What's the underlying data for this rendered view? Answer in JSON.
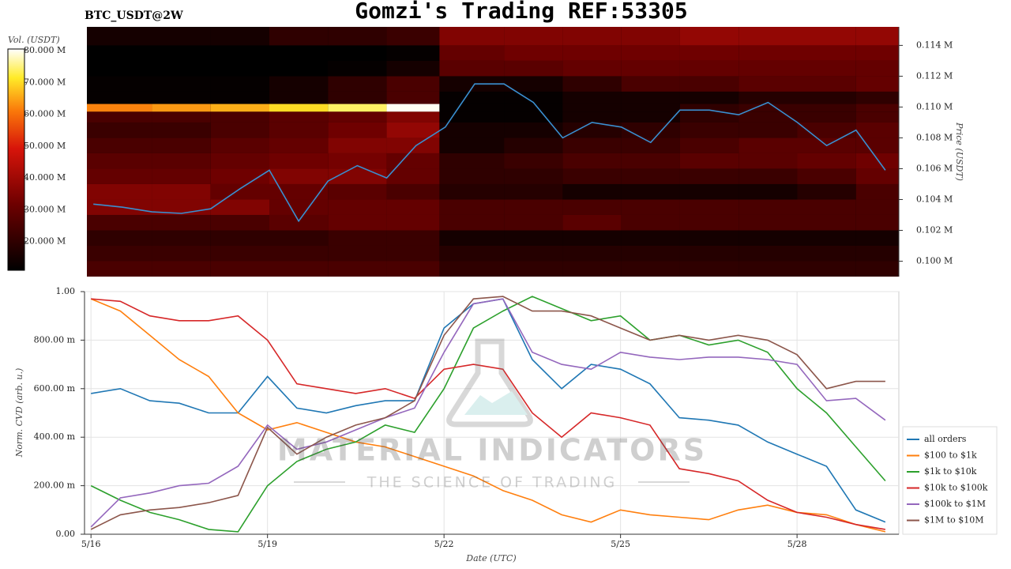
{
  "title": "Gomzi's Trading REF:53305",
  "watermark": {
    "brand": "MATERIAL INDICATORS",
    "tagline": "THE SCIENCE OF TRADING"
  },
  "chart_data": [
    {
      "type": "heatmap",
      "subtitle": "BTC_USDT@2W",
      "ylabel": "Price (USDT)",
      "xlim": [
        15.89,
        29.73
      ],
      "ylim": [
        0.099,
        0.1152
      ],
      "yticks": [
        {
          "value": 0.1,
          "label": "0.100 M"
        },
        {
          "value": 0.102,
          "label": "0.102 M"
        },
        {
          "value": 0.104,
          "label": "0.104 M"
        },
        {
          "value": 0.106,
          "label": "0.106 M"
        },
        {
          "value": 0.108,
          "label": "0.108 M"
        },
        {
          "value": 0.11,
          "label": "0.110 M"
        },
        {
          "value": 0.112,
          "label": "0.112 M"
        },
        {
          "value": 0.114,
          "label": "0.114 M"
        }
      ],
      "x_edges": [
        15.89,
        17,
        18,
        19,
        20,
        21,
        21.9,
        23,
        24,
        25,
        26,
        27,
        28,
        29,
        29.73
      ],
      "y_edges": [
        0.099,
        0.1,
        0.101,
        0.102,
        0.103,
        0.104,
        0.105,
        0.106,
        0.107,
        0.108,
        0.109,
        0.1097,
        0.1102,
        0.111,
        0.112,
        0.113,
        0.114,
        0.1152
      ],
      "values": [
        [
          25,
          25,
          25,
          25,
          25,
          25,
          20,
          20,
          20,
          20,
          20,
          20,
          20,
          20
        ],
        [
          22,
          22,
          22,
          22,
          22,
          22,
          18,
          18,
          18,
          18,
          18,
          18,
          18,
          18
        ],
        [
          20,
          20,
          20,
          20,
          22,
          22,
          15,
          15,
          15,
          15,
          15,
          15,
          15,
          15
        ],
        [
          25,
          25,
          25,
          28,
          30,
          30,
          25,
          25,
          28,
          25,
          25,
          25,
          25,
          25
        ],
        [
          35,
          35,
          35,
          30,
          30,
          30,
          25,
          25,
          25,
          25,
          25,
          25,
          25,
          25
        ],
        [
          35,
          35,
          30,
          30,
          28,
          25,
          18,
          18,
          15,
          15,
          15,
          15,
          18,
          25
        ],
        [
          30,
          30,
          32,
          35,
          35,
          30,
          20,
          20,
          22,
          22,
          22,
          22,
          25,
          30
        ],
        [
          28,
          28,
          30,
          32,
          33,
          30,
          20,
          22,
          25,
          25,
          28,
          28,
          30,
          32
        ],
        [
          25,
          25,
          28,
          30,
          35,
          35,
          15,
          18,
          22,
          22,
          25,
          28,
          28,
          28
        ],
        [
          22,
          22,
          25,
          28,
          32,
          38,
          15,
          15,
          18,
          20,
          22,
          22,
          25,
          28
        ],
        [
          25,
          25,
          25,
          28,
          30,
          35,
          12,
          12,
          15,
          15,
          20,
          22,
          22,
          25
        ],
        [
          62,
          64,
          66,
          70,
          74,
          80,
          12,
          12,
          15,
          15,
          20,
          22,
          22,
          25
        ],
        [
          12,
          12,
          12,
          15,
          20,
          25,
          12,
          12,
          15,
          15,
          15,
          18,
          18,
          20
        ],
        [
          12,
          12,
          12,
          15,
          20,
          25,
          15,
          15,
          20,
          25,
          25,
          28,
          28,
          30
        ],
        [
          10,
          10,
          10,
          10,
          12,
          15,
          28,
          28,
          30,
          30,
          30,
          30,
          30,
          30
        ],
        [
          10,
          10,
          10,
          10,
          10,
          12,
          30,
          32,
          32,
          32,
          32,
          32,
          32,
          32
        ],
        [
          15,
          15,
          15,
          20,
          20,
          22,
          35,
          35,
          35,
          35,
          38,
          38,
          38,
          38
        ]
      ],
      "colorbar": {
        "label": "Vol. (USDT)",
        "lim": [
          11,
          80.5
        ],
        "ticks": [
          {
            "value": 20,
            "label": "20.000 M"
          },
          {
            "value": 30,
            "label": "30.000 M"
          },
          {
            "value": 40,
            "label": "40.000 M"
          },
          {
            "value": 50,
            "label": "50.000 M"
          },
          {
            "value": 60,
            "label": "60.000 M"
          },
          {
            "value": 70,
            "label": "70.000 M"
          },
          {
            "value": 80,
            "label": "80.000 M"
          }
        ]
      },
      "line": {
        "color": "#3a8fd0",
        "x": [
          16,
          16.5,
          17,
          17.5,
          18,
          18.5,
          19,
          19.5,
          20,
          20.5,
          21,
          21.5,
          22,
          22.5,
          23,
          23.5,
          24,
          24.5,
          25,
          25.5,
          26,
          26.5,
          27,
          27.5,
          28,
          28.5,
          29,
          29.5
        ],
        "values": [
          0.1037,
          0.1035,
          0.1032,
          0.1031,
          0.1034,
          0.1047,
          0.1059,
          0.1026,
          0.1052,
          0.1062,
          0.1054,
          0.1075,
          0.1087,
          0.1115,
          0.1115,
          0.1103,
          0.108,
          0.109,
          0.1087,
          0.1077,
          0.1098,
          0.1098,
          0.1095,
          0.1103,
          0.109,
          0.1075,
          0.1085,
          0.1059
        ]
      }
    },
    {
      "type": "line",
      "xlabel": "Date (UTC)",
      "ylabel": "Norm. CVD (arb. u.)",
      "grid": true,
      "xlim": [
        15.89,
        29.73
      ],
      "xticks": [
        {
          "value": 16,
          "label": "5/16"
        },
        {
          "value": 19,
          "label": "5/19"
        },
        {
          "value": 22,
          "label": "5/22"
        },
        {
          "value": 25,
          "label": "5/25"
        },
        {
          "value": 28,
          "label": "5/28"
        }
      ],
      "ylim": [
        0,
        1
      ],
      "yticks": [
        {
          "value": 0,
          "label": "0.00"
        },
        {
          "value": 0.2,
          "label": "200.00 m"
        },
        {
          "value": 0.4,
          "label": "400.00 m"
        },
        {
          "value": 0.6,
          "label": "600.00 m"
        },
        {
          "value": 0.8,
          "label": "800.00 m"
        },
        {
          "value": 1,
          "label": "1.00"
        }
      ],
      "x": [
        16,
        16.5,
        17,
        17.5,
        18,
        18.5,
        19,
        19.5,
        20,
        20.5,
        21,
        21.5,
        22,
        22.5,
        23,
        23.5,
        24,
        24.5,
        25,
        25.5,
        26,
        26.5,
        27,
        27.5,
        28,
        28.5,
        29,
        29.5
      ],
      "series": [
        {
          "name": "all orders",
          "color": "#1f77b4",
          "values": [
            0.58,
            0.6,
            0.55,
            0.54,
            0.5,
            0.5,
            0.65,
            0.52,
            0.5,
            0.53,
            0.55,
            0.55,
            0.85,
            0.95,
            0.97,
            0.72,
            0.6,
            0.7,
            0.68,
            0.62,
            0.48,
            0.47,
            0.45,
            0.38,
            0.33,
            0.28,
            0.1,
            0.05
          ]
        },
        {
          "name": "$100 to $1k",
          "color": "#ff7f0e",
          "values": [
            0.97,
            0.92,
            0.82,
            0.72,
            0.65,
            0.5,
            0.43,
            0.46,
            0.42,
            0.38,
            0.36,
            0.32,
            0.28,
            0.24,
            0.18,
            0.14,
            0.08,
            0.05,
            0.1,
            0.08,
            0.07,
            0.06,
            0.1,
            0.12,
            0.09,
            0.08,
            0.04,
            0.01
          ]
        },
        {
          "name": "$1k to $10k",
          "color": "#2ca02c",
          "values": [
            0.2,
            0.14,
            0.09,
            0.06,
            0.02,
            0.01,
            0.2,
            0.3,
            0.35,
            0.38,
            0.45,
            0.42,
            0.6,
            0.85,
            0.92,
            0.98,
            0.93,
            0.88,
            0.9,
            0.8,
            0.82,
            0.78,
            0.8,
            0.75,
            0.6,
            0.5,
            0.36,
            0.22
          ]
        },
        {
          "name": "$10k to $100k",
          "color": "#d62728",
          "values": [
            0.97,
            0.96,
            0.9,
            0.88,
            0.88,
            0.9,
            0.8,
            0.62,
            0.6,
            0.58,
            0.6,
            0.56,
            0.68,
            0.7,
            0.68,
            0.5,
            0.4,
            0.5,
            0.48,
            0.45,
            0.27,
            0.25,
            0.22,
            0.14,
            0.09,
            0.07,
            0.04,
            0.02
          ]
        },
        {
          "name": "$100k to $1M",
          "color": "#9467bd",
          "values": [
            0.03,
            0.15,
            0.17,
            0.2,
            0.21,
            0.28,
            0.45,
            0.35,
            0.38,
            0.43,
            0.48,
            0.52,
            0.75,
            0.95,
            0.97,
            0.75,
            0.7,
            0.68,
            0.75,
            0.73,
            0.72,
            0.73,
            0.73,
            0.72,
            0.7,
            0.55,
            0.56,
            0.47
          ]
        },
        {
          "name": "$1M to $10M",
          "color": "#8c564b",
          "values": [
            0.02,
            0.08,
            0.1,
            0.11,
            0.13,
            0.16,
            0.44,
            0.33,
            0.4,
            0.45,
            0.48,
            0.55,
            0.82,
            0.97,
            0.98,
            0.92,
            0.92,
            0.9,
            0.85,
            0.8,
            0.82,
            0.8,
            0.82,
            0.8,
            0.74,
            0.6,
            0.63,
            0.63
          ]
        }
      ]
    }
  ]
}
